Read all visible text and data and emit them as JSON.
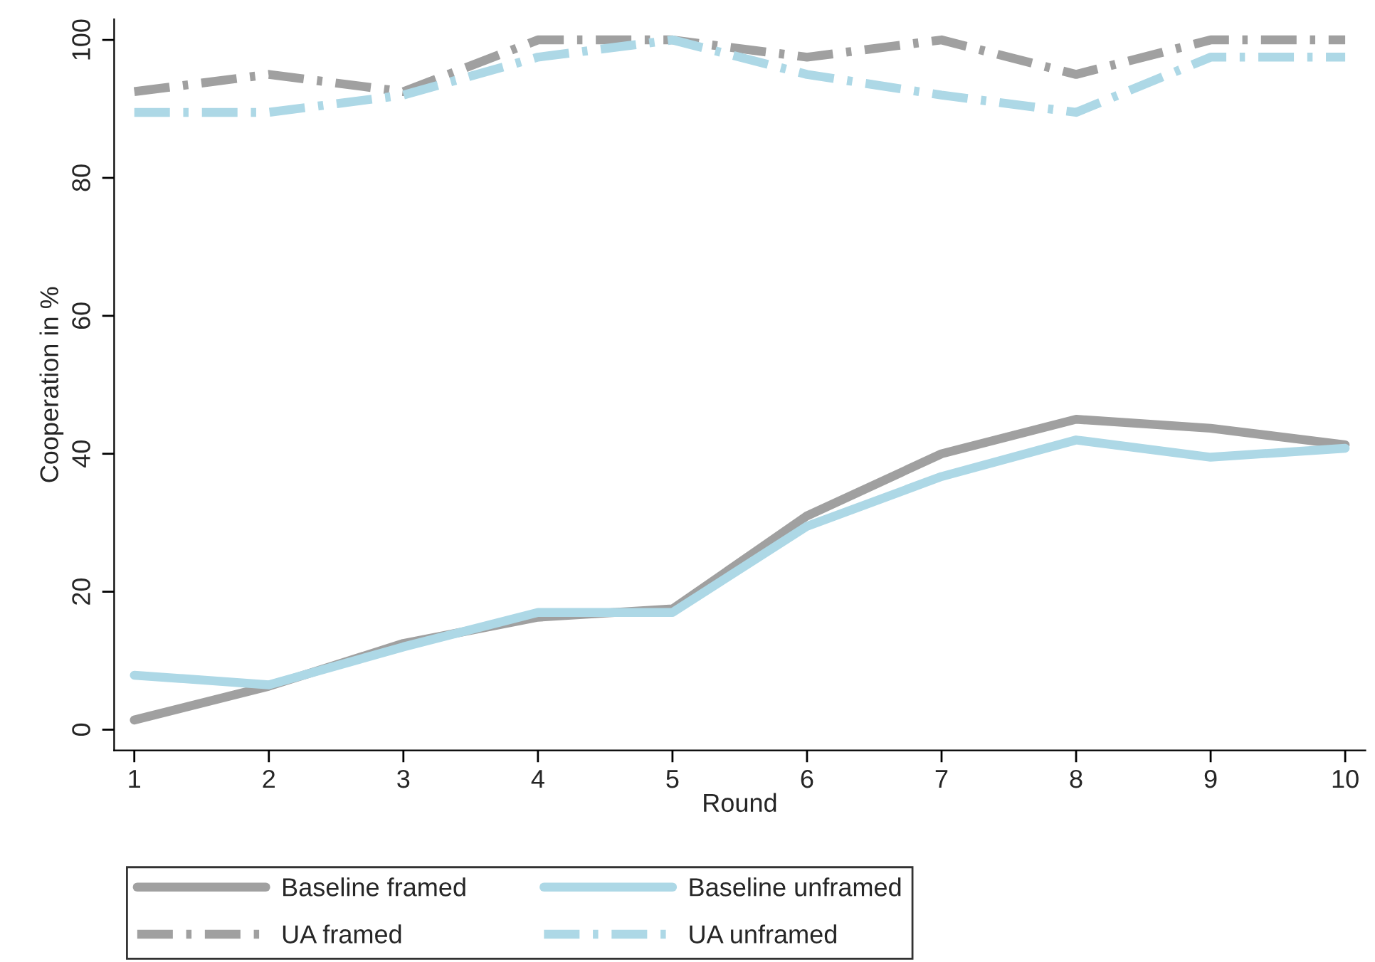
{
  "chart_data": {
    "type": "line",
    "xlabel": "Round",
    "ylabel": "Cooperation in %",
    "x": [
      1,
      2,
      3,
      4,
      5,
      6,
      7,
      8,
      9,
      10
    ],
    "xlim": [
      0.85,
      10.15
    ],
    "xticks": [
      1,
      2,
      3,
      4,
      5,
      6,
      7,
      8,
      9,
      10
    ],
    "ylim": [
      -3,
      103
    ],
    "yticks": [
      0,
      20,
      40,
      60,
      80,
      100
    ],
    "grid": false,
    "legend": "bottom",
    "marker": "none",
    "series": [
      {
        "name": "Baseline framed",
        "color": "#a0a0a0",
        "line_style": "solid",
        "values": [
          1.4,
          6.3,
          12.5,
          16.3,
          17.5,
          31,
          40,
          45,
          43.7,
          41.3
        ]
      },
      {
        "name": "Baseline unframed",
        "color": "#add8e6",
        "line_style": "solid",
        "values": [
          7.9,
          6.5,
          12,
          17,
          17,
          29.5,
          36.7,
          42,
          39.5,
          40.8
        ]
      },
      {
        "name": "UA framed",
        "color": "#a0a0a0",
        "line_style": "dashdot",
        "values": [
          92.5,
          95,
          92.5,
          100,
          100,
          97.5,
          100,
          95,
          100,
          100
        ]
      },
      {
        "name": "UA unframed",
        "color": "#add8e6",
        "line_style": "dashdot",
        "values": [
          89.5,
          89.5,
          92,
          97.5,
          100,
          95,
          92,
          89.5,
          97.5,
          97.5
        ]
      }
    ]
  }
}
